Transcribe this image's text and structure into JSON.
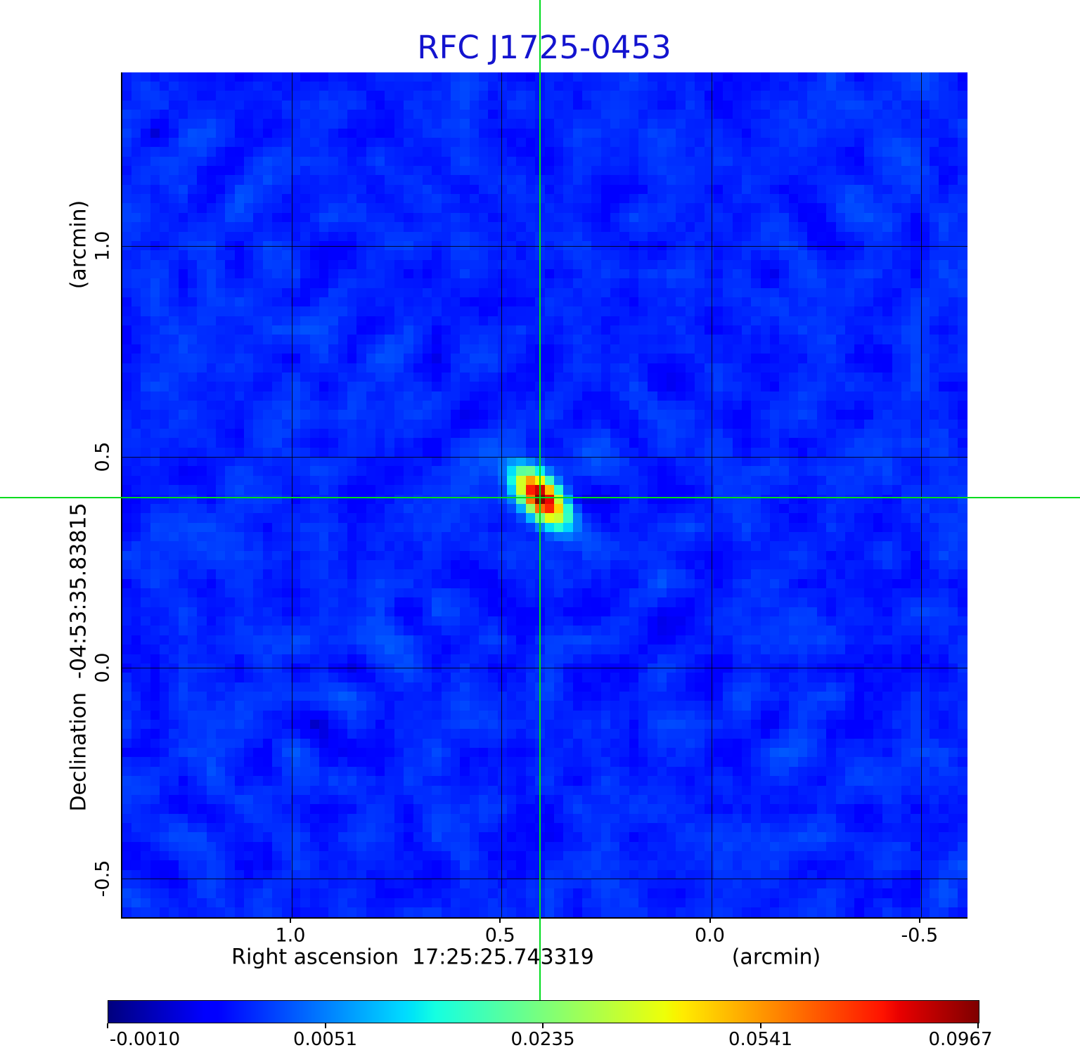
{
  "title": {
    "text": "RFC J1725-0453",
    "color": "#1414cf"
  },
  "axes": {
    "x": {
      "label_full": "Right ascension  17:25:25.743319",
      "unit": "(arcmin)",
      "ticks": [
        1.0,
        0.5,
        0.0,
        -0.5
      ],
      "range": [
        1.404,
        -0.611
      ]
    },
    "y": {
      "label_full": "Declination  -04:53:35.83815",
      "unit": "(arcmin)",
      "ticks": [
        1.0,
        0.5,
        0.0,
        -0.5
      ],
      "range": [
        1.412,
        -0.592
      ]
    }
  },
  "crosshair": {
    "color": "#00dc1e",
    "ra_offset_arcmin": 0.405,
    "dec_offset_arcmin": 0.403
  },
  "colorbar": {
    "tick_labels": [
      "-0.0010",
      "0.0051",
      "0.0235",
      "0.0541",
      "0.0967"
    ],
    "tick_values": [
      -0.001,
      0.0051,
      0.0235,
      0.0541,
      0.0967
    ],
    "colormap": "jet",
    "scale": "sqrt",
    "vmin": -0.001,
    "vmax": 0.0967
  },
  "chart_data": {
    "type": "heatmap",
    "title": "RFC J1725-0453",
    "xlabel": "Right ascension  17:25:25.743319  (arcmin)",
    "ylabel": "Declination  -04:53:35.83815  (arcmin)",
    "x_ticks": [
      1.0,
      0.5,
      0.0,
      -0.5
    ],
    "y_ticks": [
      1.0,
      0.5,
      0.0,
      -0.5
    ],
    "x_range_arcmin": [
      1.404,
      -0.611
    ],
    "y_range_arcmin": [
      1.412,
      -0.592
    ],
    "grid": true,
    "colormap": "jet",
    "intensity_scale": "sqrt",
    "colorbar_ticks": [
      -0.001,
      0.0051,
      0.0235,
      0.0541,
      0.0967
    ],
    "background_level_approx": 0.002,
    "peak": {
      "value": 0.0967,
      "ra_offset_arcmin": 0.405,
      "dec_offset_arcmin": 0.403,
      "shape": "elliptical-gaussian",
      "major_axis_pa_deg": 48
    },
    "marker": {
      "type": "crosshair",
      "ra_offset_arcmin": 0.405,
      "dec_offset_arcmin": 0.403,
      "color": "#00dc1e"
    }
  }
}
